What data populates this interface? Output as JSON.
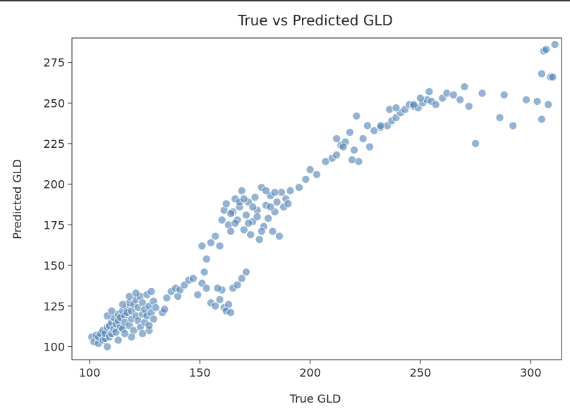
{
  "chart_data": {
    "type": "scatter",
    "title": "True vs Predicted GLD",
    "xlabel": "True GLD",
    "ylabel": "Predicted GLD",
    "xlim": [
      92,
      314
    ],
    "ylim": [
      92,
      290
    ],
    "xticks": [
      100,
      150,
      200,
      250,
      300
    ],
    "yticks": [
      100,
      125,
      150,
      175,
      200,
      225,
      250,
      275
    ],
    "grid": false,
    "point_color": "#4c7fb4",
    "point_opacity": 0.6,
    "points": [
      [
        101,
        106
      ],
      [
        102,
        103
      ],
      [
        103,
        107
      ],
      [
        104,
        102
      ],
      [
        104,
        106
      ],
      [
        105,
        108
      ],
      [
        106,
        104
      ],
      [
        106,
        110
      ],
      [
        107,
        105
      ],
      [
        107,
        108
      ],
      [
        108,
        100
      ],
      [
        108,
        112
      ],
      [
        109,
        106
      ],
      [
        109,
        113
      ],
      [
        110,
        108
      ],
      [
        110,
        115
      ],
      [
        111,
        111
      ],
      [
        111,
        118
      ],
      [
        112,
        114
      ],
      [
        112,
        109
      ],
      [
        113,
        116
      ],
      [
        113,
        120
      ],
      [
        114,
        112
      ],
      [
        114,
        118
      ],
      [
        115,
        122
      ],
      [
        115,
        111
      ],
      [
        116,
        119
      ],
      [
        116,
        115
      ],
      [
        117,
        124
      ],
      [
        117,
        121
      ],
      [
        118,
        113
      ],
      [
        118,
        127
      ],
      [
        119,
        117
      ],
      [
        119,
        122
      ],
      [
        120,
        126
      ],
      [
        120,
        110
      ],
      [
        121,
        119
      ],
      [
        121,
        129
      ],
      [
        122,
        116
      ],
      [
        122,
        124
      ],
      [
        123,
        131
      ],
      [
        123,
        112
      ],
      [
        124,
        120
      ],
      [
        124,
        127
      ],
      [
        125,
        115
      ],
      [
        125,
        123
      ],
      [
        126,
        132
      ],
      [
        126,
        119
      ],
      [
        127,
        125
      ],
      [
        127,
        110
      ],
      [
        128,
        134
      ],
      [
        128,
        121
      ],
      [
        129,
        128
      ],
      [
        129,
        117
      ],
      [
        130,
        124
      ],
      [
        108,
        119
      ],
      [
        110,
        122
      ],
      [
        115,
        126
      ],
      [
        118,
        131
      ],
      [
        121,
        133
      ],
      [
        124,
        108
      ],
      [
        119,
        106
      ],
      [
        116,
        108
      ],
      [
        113,
        104
      ],
      [
        127,
        113
      ],
      [
        133,
        121
      ],
      [
        134,
        123
      ],
      [
        135,
        130
      ],
      [
        137,
        134
      ],
      [
        139,
        136
      ],
      [
        140,
        131
      ],
      [
        141,
        135
      ],
      [
        143,
        138
      ],
      [
        145,
        141
      ],
      [
        147,
        142
      ],
      [
        149,
        132
      ],
      [
        151,
        139
      ],
      [
        153,
        136
      ],
      [
        155,
        127
      ],
      [
        157,
        125
      ],
      [
        159,
        129
      ],
      [
        161,
        124
      ],
      [
        163,
        126
      ],
      [
        165,
        136
      ],
      [
        167,
        138
      ],
      [
        169,
        142
      ],
      [
        171,
        146
      ],
      [
        160,
        135
      ],
      [
        158,
        136
      ],
      [
        162,
        122
      ],
      [
        164,
        121
      ],
      [
        152,
        146
      ],
      [
        153,
        154
      ],
      [
        151,
        162
      ],
      [
        155,
        164
      ],
      [
        157,
        168
      ],
      [
        159,
        162
      ],
      [
        160,
        178
      ],
      [
        161,
        184
      ],
      [
        162,
        188
      ],
      [
        163,
        175
      ],
      [
        164,
        171
      ],
      [
        165,
        183
      ],
      [
        166,
        191
      ],
      [
        167,
        178
      ],
      [
        168,
        186
      ],
      [
        169,
        196
      ],
      [
        170,
        172
      ],
      [
        171,
        181
      ],
      [
        172,
        189
      ],
      [
        173,
        169
      ],
      [
        174,
        177
      ],
      [
        175,
        192
      ],
      [
        176,
        184
      ],
      [
        177,
        166
      ],
      [
        178,
        198
      ],
      [
        179,
        174
      ],
      [
        180,
        187
      ],
      [
        181,
        179
      ],
      [
        182,
        193
      ],
      [
        183,
        171
      ],
      [
        184,
        183
      ],
      [
        185,
        189
      ],
      [
        186,
        168
      ],
      [
        187,
        195
      ],
      [
        188,
        186
      ],
      [
        189,
        191
      ],
      [
        190,
        188
      ],
      [
        191,
        196
      ],
      [
        164,
        182
      ],
      [
        166,
        176
      ],
      [
        168,
        189
      ],
      [
        170,
        191
      ],
      [
        172,
        176
      ],
      [
        174,
        186
      ],
      [
        176,
        180
      ],
      [
        178,
        171
      ],
      [
        180,
        196
      ],
      [
        182,
        186
      ],
      [
        184,
        195
      ],
      [
        195,
        198
      ],
      [
        198,
        203
      ],
      [
        200,
        209
      ],
      [
        203,
        206
      ],
      [
        207,
        214
      ],
      [
        210,
        216
      ],
      [
        212,
        218
      ],
      [
        214,
        224
      ],
      [
        216,
        226
      ],
      [
        218,
        232
      ],
      [
        220,
        221
      ],
      [
        222,
        214
      ],
      [
        224,
        228
      ],
      [
        227,
        223
      ],
      [
        229,
        233
      ],
      [
        232,
        235
      ],
      [
        235,
        236
      ],
      [
        237,
        239
      ],
      [
        239,
        241
      ],
      [
        241,
        244
      ],
      [
        243,
        246
      ],
      [
        245,
        249
      ],
      [
        247,
        248
      ],
      [
        249,
        247
      ],
      [
        251,
        250
      ],
      [
        253,
        252
      ],
      [
        255,
        251
      ],
      [
        257,
        249
      ],
      [
        260,
        253
      ],
      [
        262,
        256
      ],
      [
        265,
        255
      ],
      [
        268,
        252
      ],
      [
        270,
        260
      ],
      [
        272,
        248
      ],
      [
        275,
        225
      ],
      [
        278,
        256
      ],
      [
        286,
        241
      ],
      [
        288,
        255
      ],
      [
        292,
        236
      ],
      [
        298,
        252
      ],
      [
        303,
        251
      ],
      [
        305,
        240
      ],
      [
        306,
        282
      ],
      [
        307,
        283
      ],
      [
        308,
        249
      ],
      [
        309,
        266
      ],
      [
        310,
        266
      ],
      [
        311,
        286
      ],
      [
        305,
        268
      ],
      [
        254,
        257
      ],
      [
        247,
        249
      ],
      [
        250,
        253
      ],
      [
        236,
        246
      ],
      [
        239,
        247
      ],
      [
        232,
        236
      ],
      [
        226,
        236
      ],
      [
        219,
        215
      ],
      [
        212,
        228
      ],
      [
        215,
        223
      ],
      [
        221,
        242
      ]
    ]
  }
}
